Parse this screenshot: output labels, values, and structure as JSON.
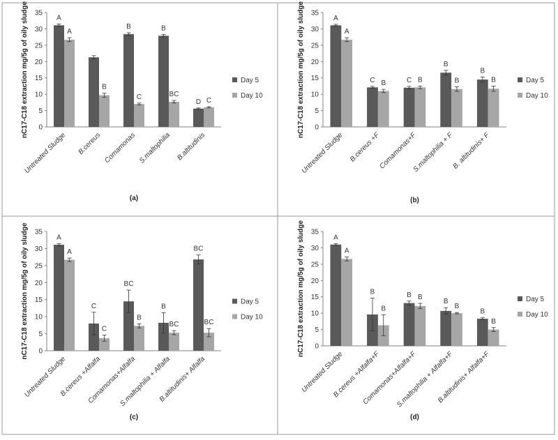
{
  "colors": {
    "day5": "#595959",
    "day10": "#a6a6a6"
  },
  "chart_data": [
    {
      "type": "bar",
      "panel_label": "(a)",
      "ylabel": "nC17-C18 extraction mg/5g of oily sludge",
      "ylim": [
        0,
        35
      ],
      "yticks": [
        0,
        5,
        10,
        15,
        20,
        25,
        30,
        35
      ],
      "categories": [
        "Untreated Sludge",
        "B.cereus",
        "Comamonas",
        "S.maltophilia",
        "B.altitudinis"
      ],
      "legend_position": "right",
      "series": [
        {
          "name": "Day 5",
          "values": [
            31.1,
            21.3,
            28.4,
            27.9,
            5.6
          ],
          "errors": [
            0.4,
            0.5,
            0.4,
            0.4,
            0.2
          ],
          "labels": [
            "A",
            "",
            "B",
            "B",
            "D"
          ]
        },
        {
          "name": "Day 10",
          "values": [
            26.7,
            9.7,
            7.0,
            7.7,
            6.0
          ],
          "errors": [
            0.6,
            0.6,
            0.3,
            0.4,
            0.2
          ],
          "labels": [
            "A",
            "B",
            "C",
            "BC",
            "C"
          ]
        }
      ]
    },
    {
      "type": "bar",
      "panel_label": "(b)",
      "ylabel": "nC17-C18 extraction mg/5g of oily sludge",
      "ylim": [
        0,
        35
      ],
      "yticks": [
        0,
        5,
        10,
        15,
        20,
        25,
        30,
        35
      ],
      "categories": [
        "Untreated Sludge",
        "B.cereus +F",
        "Comamonas+F",
        "S.maltophilia + F",
        "B. altitudinis+ F"
      ],
      "legend_position": "right",
      "series": [
        {
          "name": "Day 5",
          "values": [
            31.1,
            12.1,
            12.0,
            16.6,
            14.5
          ],
          "errors": [
            0.3,
            0.3,
            0.4,
            0.7,
            0.8
          ],
          "labels": [
            "A",
            "C",
            "C",
            "B",
            "B"
          ]
        },
        {
          "name": "Day 10",
          "values": [
            26.7,
            11.0,
            12.1,
            11.6,
            11.7
          ],
          "errors": [
            0.6,
            0.5,
            0.4,
            0.7,
            0.8
          ],
          "labels": [
            "A",
            "B",
            "B",
            "B",
            "B"
          ]
        }
      ]
    },
    {
      "type": "bar",
      "panel_label": "(c)",
      "ylabel": "nC17-C18 extraction mg/5g of oily sludge",
      "ylim": [
        0,
        35
      ],
      "yticks": [
        0,
        5,
        10,
        15,
        20,
        25,
        30,
        35
      ],
      "categories": [
        "Untreated Sludge",
        "B.cereus +Alfalfa",
        "Comamonas+Alfalfa",
        "S.maltophilia + Alfalfa",
        "B.altitudinis+ Alfalfa"
      ],
      "legend_position": "right",
      "series": [
        {
          "name": "Day 5",
          "values": [
            31.1,
            8.0,
            14.5,
            8.2,
            26.8
          ],
          "errors": [
            0.3,
            3.3,
            3.3,
            3.0,
            1.3
          ],
          "labels": [
            "A",
            "C",
            "BC",
            "B",
            "BC"
          ]
        },
        {
          "name": "Day 10",
          "values": [
            26.7,
            3.7,
            7.3,
            5.3,
            5.3
          ],
          "errors": [
            0.5,
            0.9,
            0.6,
            0.6,
            1.2
          ],
          "labels": [
            "A",
            "C",
            "B",
            "BC",
            "BC"
          ]
        }
      ]
    },
    {
      "type": "bar",
      "panel_label": "(d)",
      "ylabel": "nC17-C18 extraction mg/5g of oily sludge",
      "ylim": [
        0,
        35
      ],
      "yticks": [
        0,
        5,
        10,
        15,
        20,
        25,
        30,
        35
      ],
      "categories": [
        "Untreated Sludge",
        "B.cereus +Alfalfa+F",
        "Comamonas+Alfalfa+F",
        "S.maltophilia + Alfalfa+F",
        "B.altitudinis+ Alfalfa+F"
      ],
      "legend_position": "right",
      "series": [
        {
          "name": "Day 5",
          "values": [
            31.0,
            9.6,
            13.1,
            10.7,
            8.3
          ],
          "errors": [
            0.3,
            5.0,
            0.6,
            1.0,
            0.3
          ],
          "labels": [
            "A",
            "B",
            "B",
            "B",
            "B"
          ]
        },
        {
          "name": "Day 10",
          "values": [
            26.6,
            6.3,
            12.2,
            10.0,
            5.0
          ],
          "errors": [
            0.6,
            3.2,
            0.8,
            0.2,
            0.6
          ],
          "labels": [
            "A",
            "B",
            "B",
            "B",
            "B"
          ]
        }
      ]
    }
  ]
}
